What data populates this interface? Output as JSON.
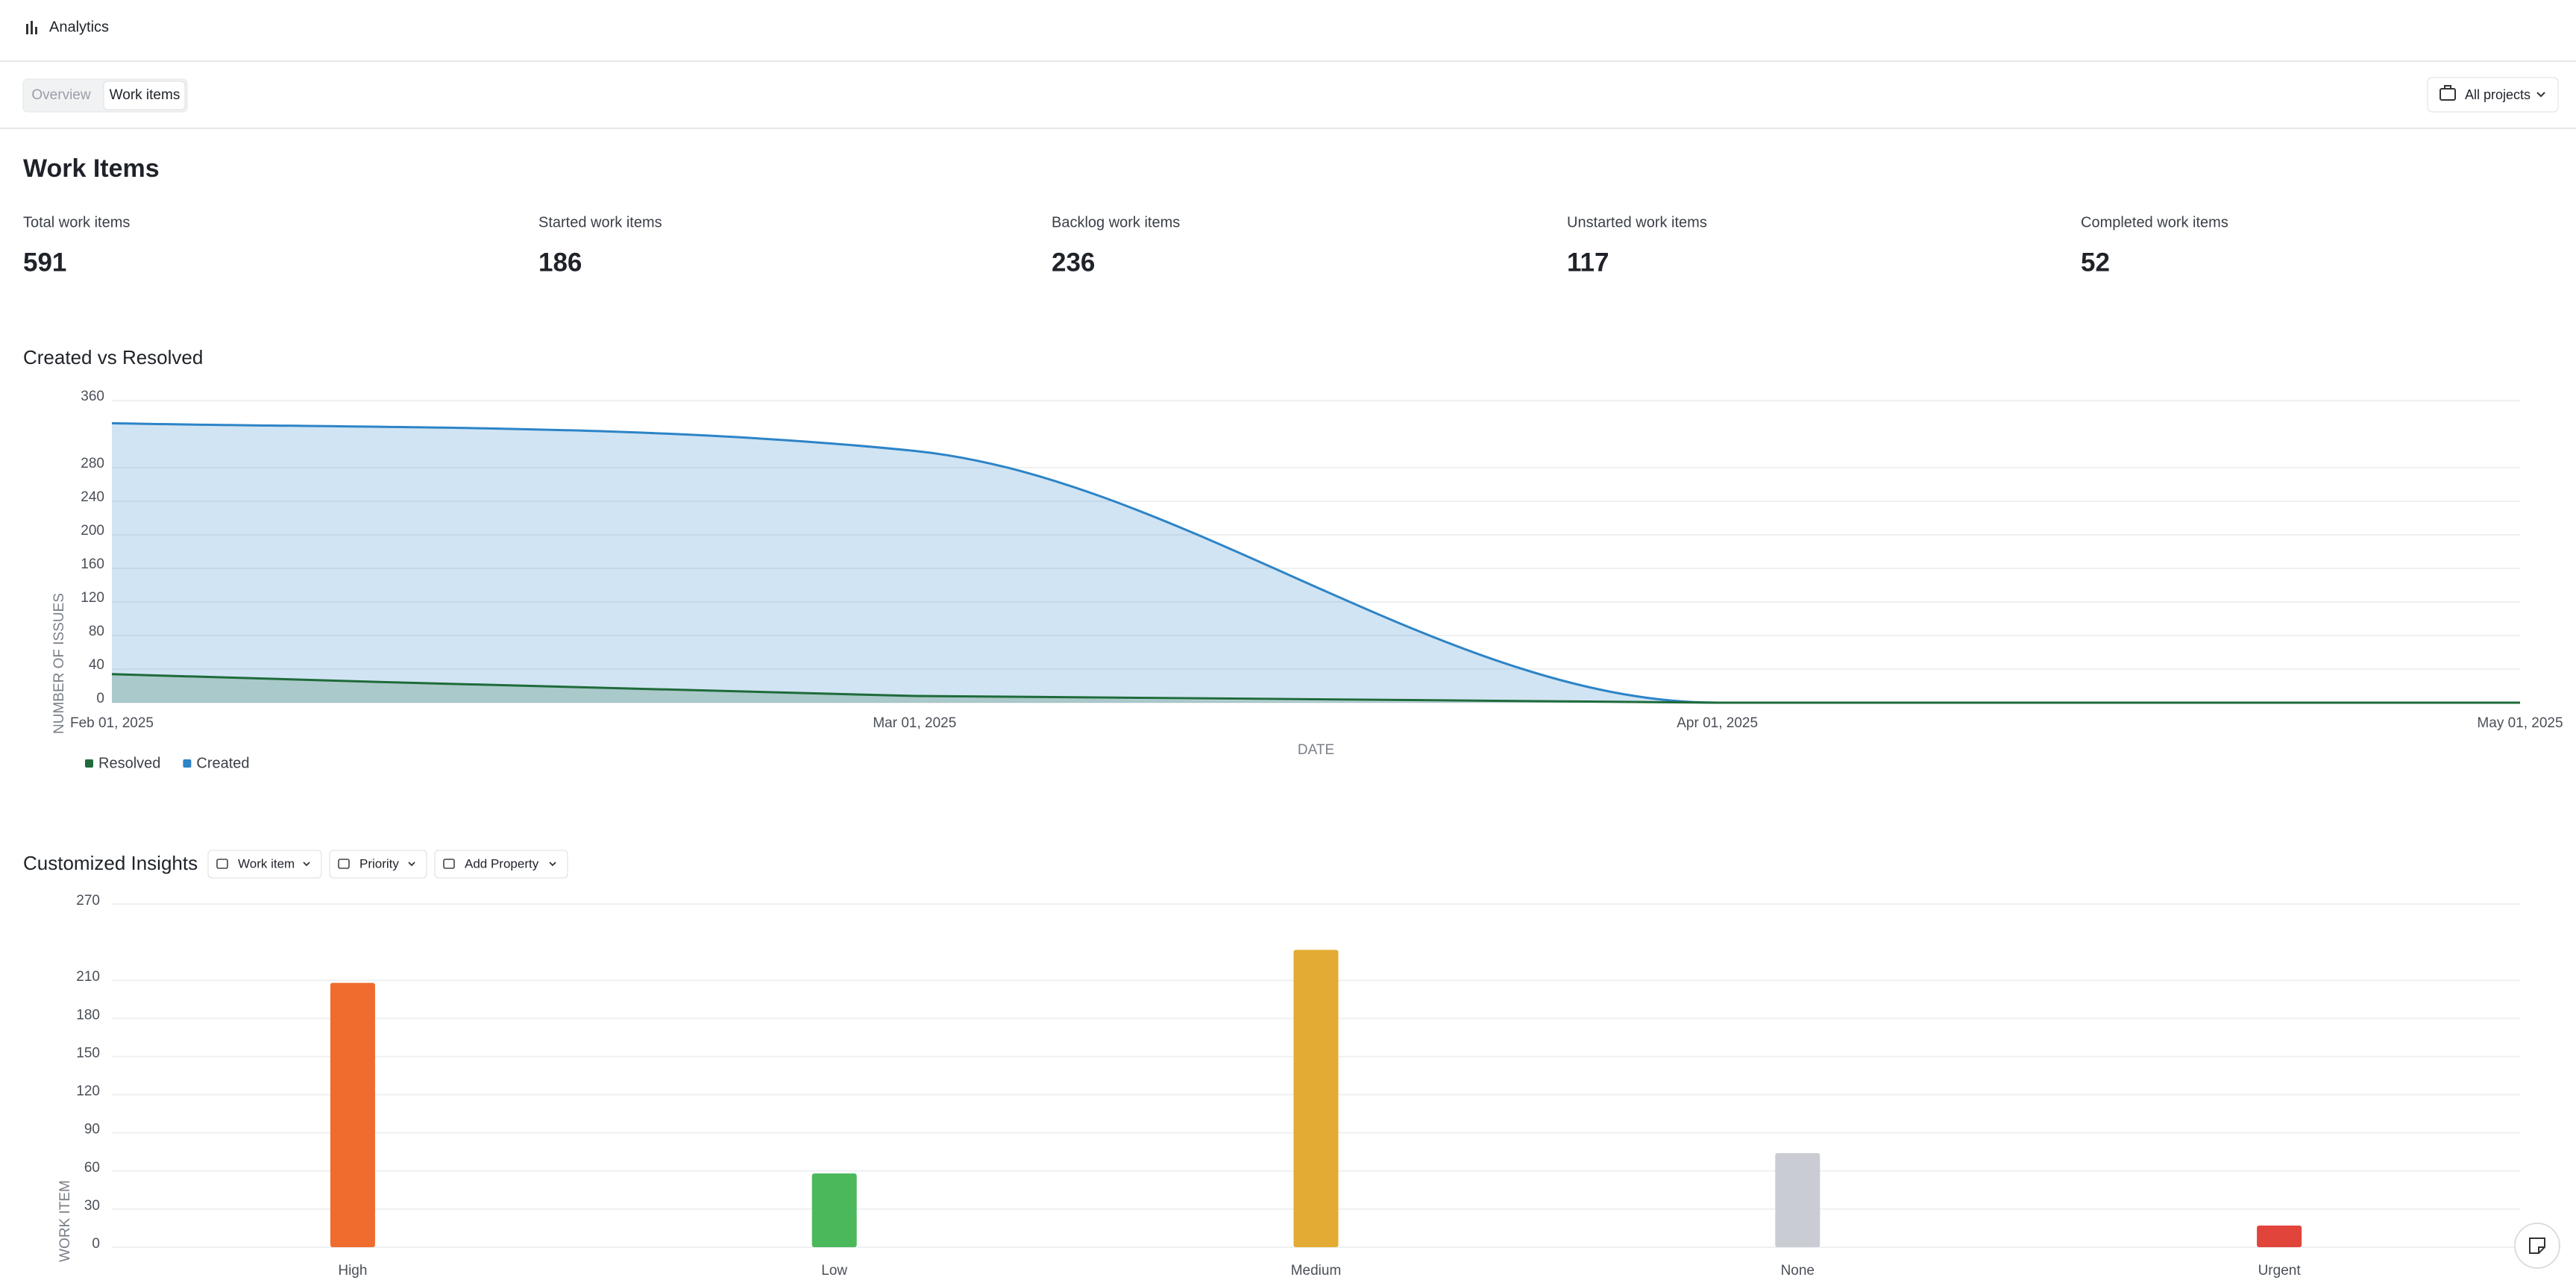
{
  "header": {
    "title": "Analytics"
  },
  "tabs": [
    "Overview",
    "Work items"
  ],
  "project_filter": "All projects",
  "section_title": "Work Items",
  "stats": [
    {
      "label": "Total work items",
      "value": 591
    },
    {
      "label": "Started work items",
      "value": 186
    },
    {
      "label": "Backlog work items",
      "value": 236
    },
    {
      "label": "Unstarted work items",
      "value": 117
    },
    {
      "label": "Completed work items",
      "value": 52
    }
  ],
  "insights_controls": [
    "Work item",
    "Priority",
    "Add Property"
  ],
  "chart_data": [
    {
      "type": "area",
      "title": "Created vs Resolved",
      "x": [
        "Feb 01, 2025",
        "Mar 01, 2025",
        "Apr 01, 2025",
        "May 01, 2025"
      ],
      "series": [
        {
          "name": "Resolved",
          "color": "#1f6b3a",
          "values": [
            34,
            8,
            0,
            0
          ]
        },
        {
          "name": "Created",
          "color": "#2d84c7",
          "values": [
            333,
            300,
            0,
            0
          ]
        }
      ],
      "ylim": [
        0,
        360
      ],
      "yticks": [
        0,
        40,
        80,
        120,
        160,
        200,
        240,
        280,
        360
      ],
      "x_label": "DATE",
      "y_label": "NUMBER OF ISSUES",
      "grid": true
    },
    {
      "type": "bar",
      "title": "Customized Insights",
      "categories": [
        "High",
        "Low",
        "Medium",
        "None",
        "Urgent"
      ],
      "values": [
        208,
        58,
        234,
        74,
        17
      ],
      "colors": [
        "#ef6c2e",
        "#4cb85c",
        "#e3ab33",
        "#c9ccd3",
        "#e0443a"
      ],
      "ylim": [
        0,
        270
      ],
      "yticks": [
        0,
        30,
        60,
        90,
        120,
        150,
        180,
        210,
        270
      ],
      "y_label": "WORK ITEM",
      "grid": true
    }
  ]
}
